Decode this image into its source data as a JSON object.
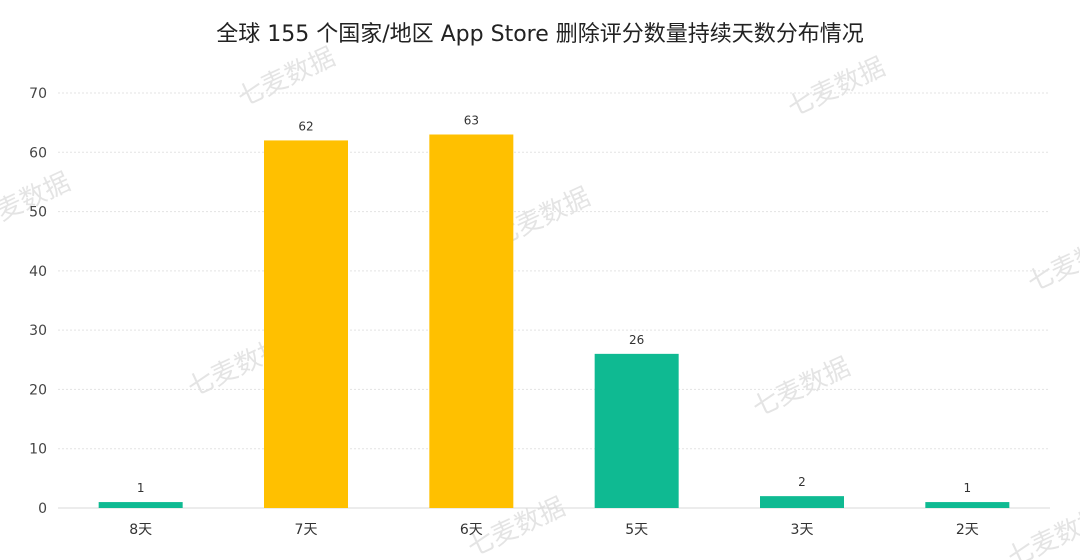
{
  "watermark": "七麦数据",
  "chart_data": {
    "type": "bar",
    "title": "全球 155 个国家/地区 App Store 删除评分数量持续天数分布情况",
    "categories": [
      "8天",
      "7天",
      "6天",
      "5天",
      "3天",
      "2天"
    ],
    "values": [
      1,
      62,
      63,
      26,
      2,
      1
    ],
    "bar_colors": [
      "#0fba92",
      "#ffc000",
      "#ffc000",
      "#0fba92",
      "#0fba92",
      "#0fba92"
    ],
    "xlabel": "",
    "ylabel": "",
    "ylim": [
      0,
      70
    ],
    "yticks": [
      0,
      10,
      20,
      30,
      40,
      50,
      60,
      70
    ],
    "grid": true,
    "legend": "none",
    "data_labels": true
  }
}
